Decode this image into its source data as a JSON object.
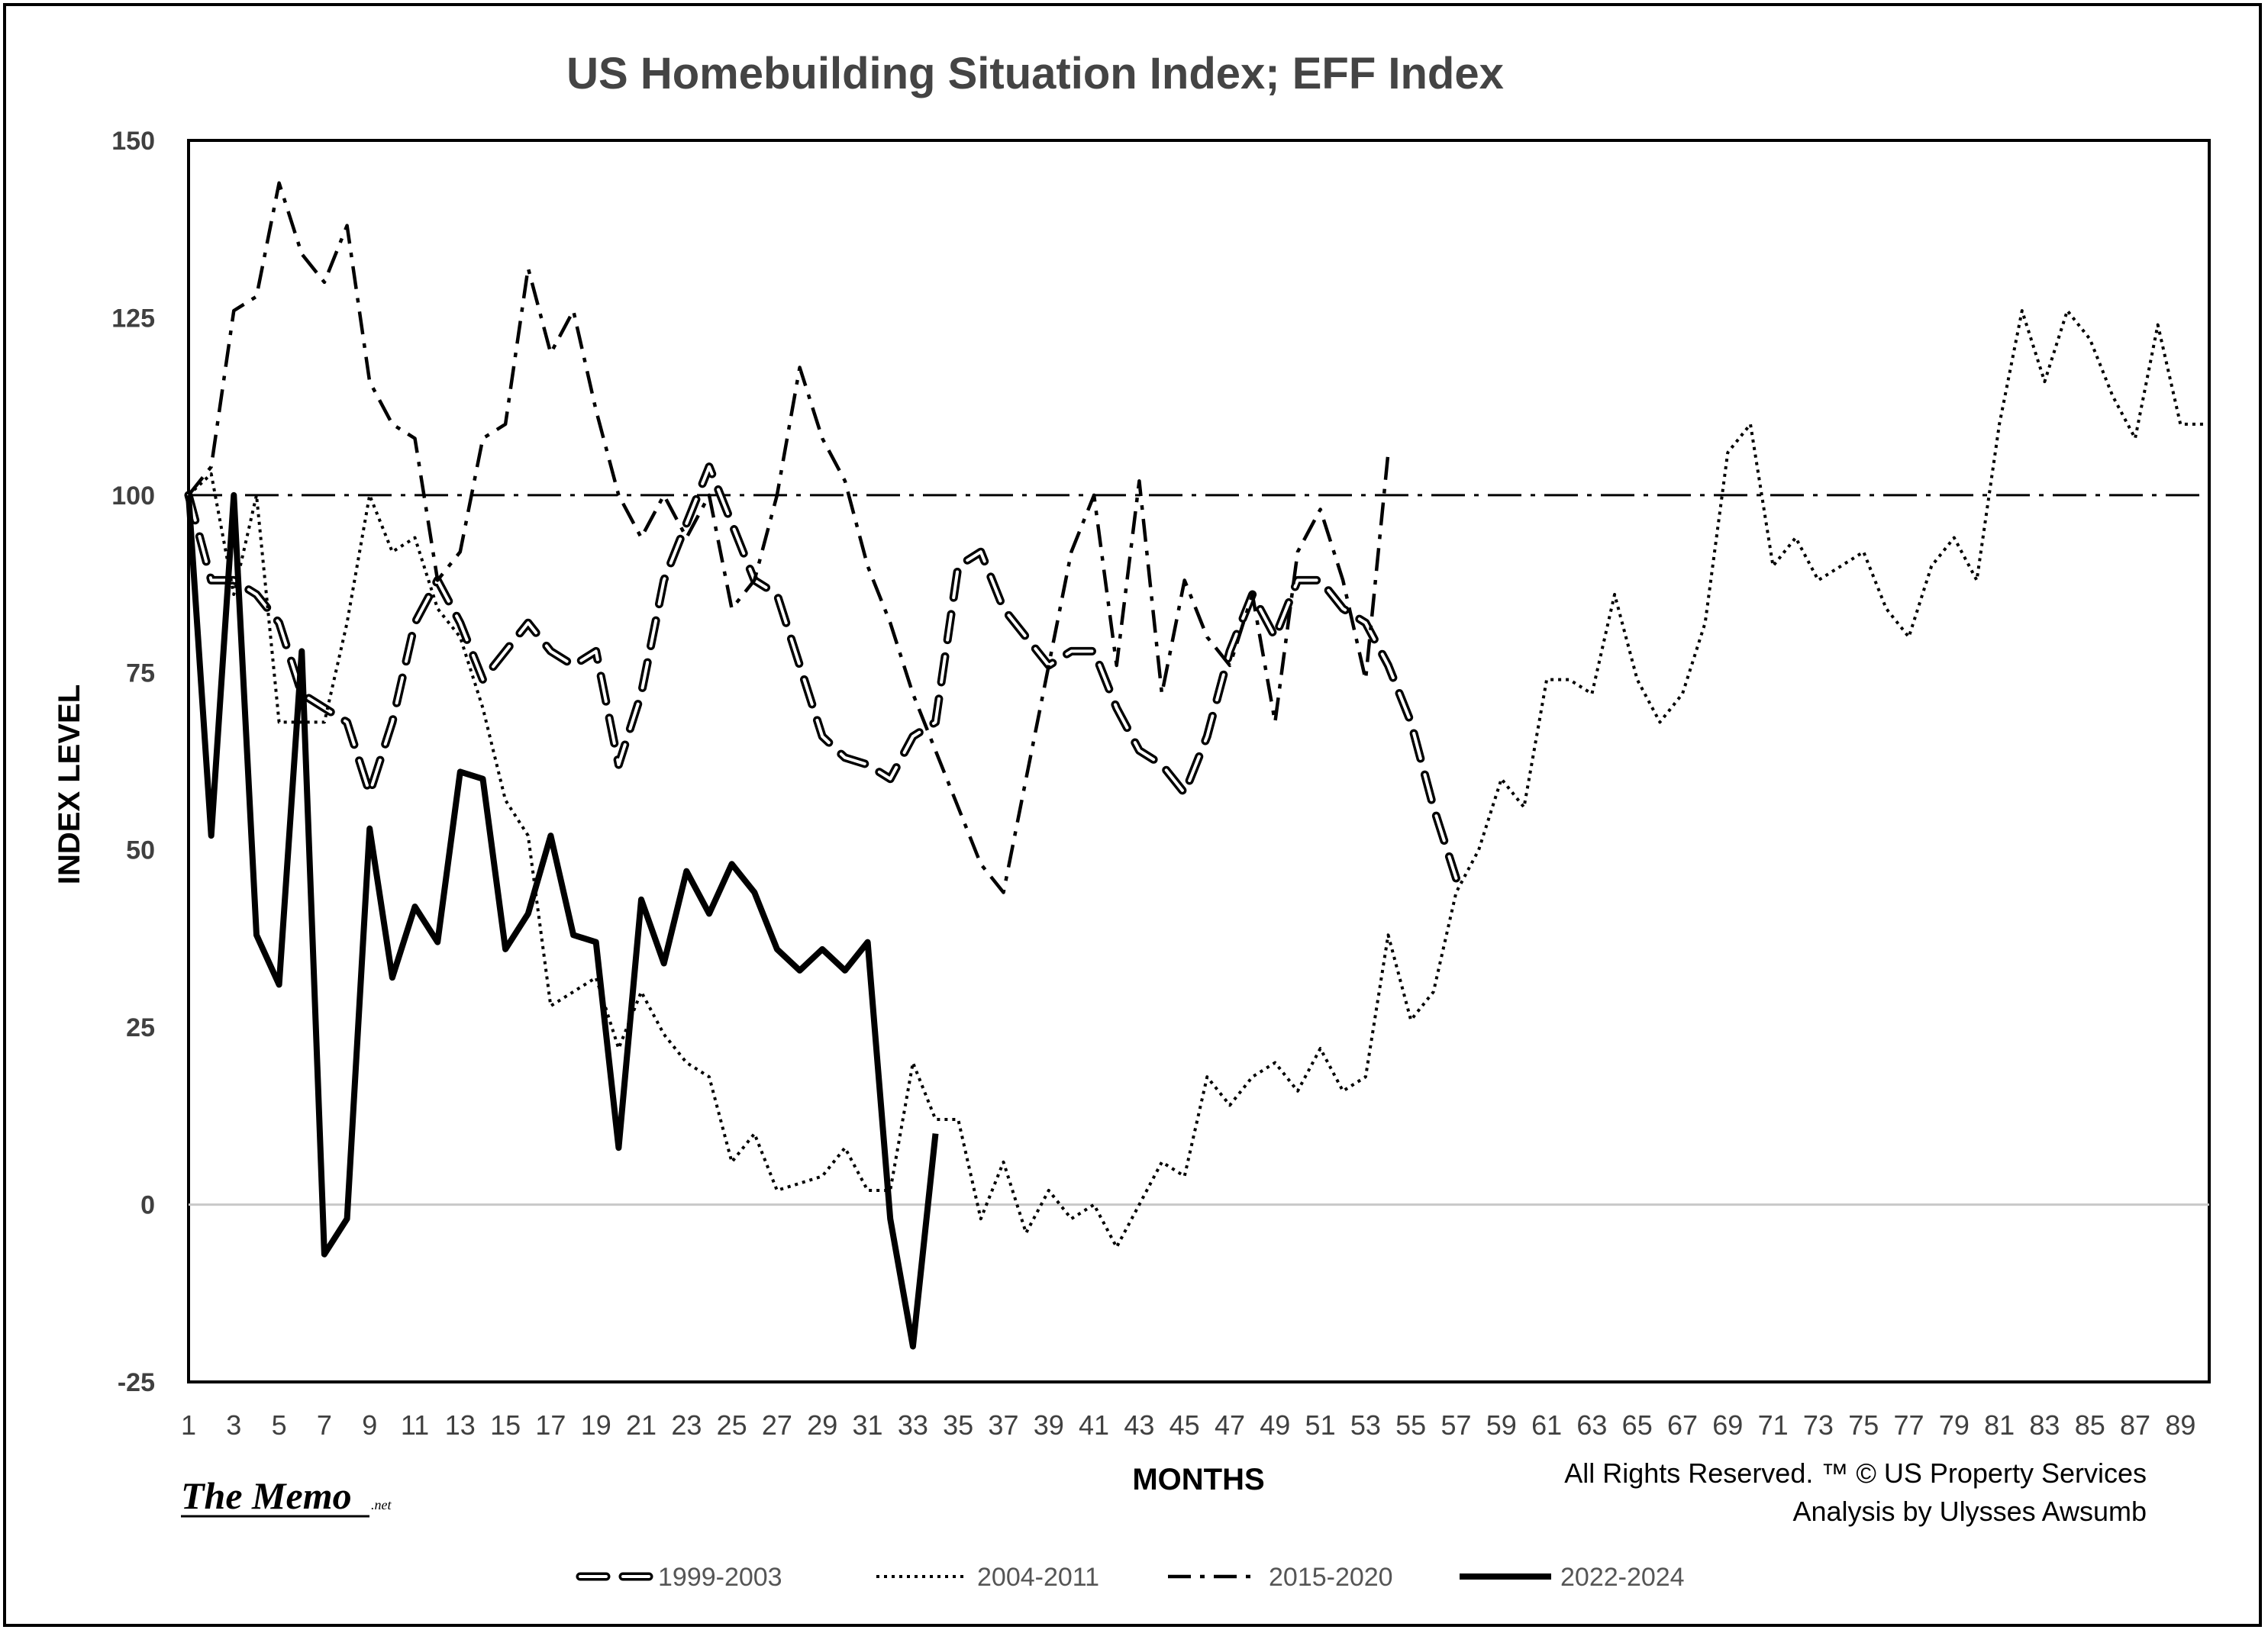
{
  "chart_data": {
    "type": "line",
    "title": "US Homebuilding Situation Index; EFF Index",
    "xlabel": "MONTHS",
    "ylabel": "INDEX LEVEL",
    "ylim": [
      -25,
      150
    ],
    "yticks": [
      -25,
      0,
      25,
      50,
      75,
      100,
      125,
      150
    ],
    "xlim": [
      1,
      90
    ],
    "xtick_labels": [
      "1",
      "3",
      "5",
      "7",
      "9",
      "11",
      "13",
      "15",
      "17",
      "19",
      "21",
      "23",
      "25",
      "27",
      "29",
      "31",
      "33",
      "35",
      "37",
      "39",
      "41",
      "43",
      "45",
      "47",
      "49",
      "51",
      "53",
      "55",
      "57",
      "59",
      "61",
      "63",
      "65",
      "67",
      "69",
      "71",
      "73",
      "75",
      "77",
      "79",
      "81",
      "83",
      "85",
      "87",
      "89"
    ],
    "grid": false,
    "legend_position": "bottom",
    "reference_line": {
      "y": 100,
      "style": "dash-dot"
    },
    "zero_line": {
      "y": 0
    },
    "series": [
      {
        "name": "1999-2003",
        "style": "double-dash",
        "x": [
          1,
          2,
          3,
          4,
          5,
          6,
          7,
          8,
          9,
          10,
          11,
          12,
          13,
          14,
          15,
          16,
          17,
          18,
          19,
          20,
          21,
          22,
          23,
          24,
          25,
          26,
          27,
          28,
          29,
          30,
          31,
          32,
          33,
          34,
          35,
          36,
          37,
          38,
          39,
          40,
          41,
          42,
          43,
          44,
          45,
          46,
          47,
          48,
          49,
          50,
          51,
          52,
          53,
          54,
          55,
          56,
          57
        ],
        "values": [
          100,
          88,
          88,
          86,
          82,
          72,
          70,
          68,
          58,
          68,
          82,
          88,
          82,
          74,
          78,
          82,
          78,
          76,
          78,
          62,
          72,
          88,
          96,
          104,
          96,
          88,
          86,
          76,
          66,
          63,
          62,
          60,
          66,
          68,
          90,
          92,
          84,
          80,
          76,
          78,
          78,
          70,
          64,
          62,
          58,
          66,
          78,
          86,
          80,
          88,
          88,
          84,
          82,
          76,
          68,
          56,
          46
        ]
      },
      {
        "name": "2004-2011",
        "style": "dotted",
        "x": [
          1,
          2,
          3,
          4,
          5,
          6,
          7,
          8,
          9,
          10,
          11,
          12,
          13,
          14,
          15,
          16,
          17,
          18,
          19,
          20,
          21,
          22,
          23,
          24,
          25,
          26,
          27,
          28,
          29,
          30,
          31,
          32,
          33,
          34,
          35,
          36,
          37,
          38,
          39,
          40,
          41,
          42,
          43,
          44,
          45,
          46,
          47,
          48,
          49,
          50,
          51,
          52,
          53,
          54,
          55,
          56,
          57,
          58,
          59,
          60,
          61,
          62,
          63,
          64,
          65,
          66,
          67,
          68,
          69,
          70,
          71,
          72,
          73,
          74,
          75,
          76,
          77,
          78,
          79,
          80,
          81,
          82,
          83,
          84,
          85,
          86,
          87,
          88,
          89,
          90
        ],
        "values": [
          100,
          103,
          86,
          100,
          68,
          68,
          68,
          82,
          100,
          92,
          94,
          84,
          80,
          70,
          57,
          52,
          28,
          30,
          32,
          22,
          30,
          24,
          20,
          18,
          6,
          10,
          2,
          3,
          4,
          8,
          2,
          2,
          20,
          12,
          12,
          -2,
          6,
          -4,
          2,
          -2,
          0,
          -6,
          0,
          6,
          4,
          18,
          14,
          18,
          20,
          16,
          22,
          16,
          18,
          38,
          26,
          30,
          44,
          50,
          60,
          56,
          74,
          74,
          72,
          86,
          74,
          68,
          72,
          82,
          106,
          110,
          90,
          94,
          88,
          90,
          92,
          84,
          80,
          90,
          94,
          88,
          110,
          126,
          116,
          126,
          122,
          114,
          108,
          124,
          110,
          110
        ]
      },
      {
        "name": "2015-2020",
        "style": "dash-dot",
        "x": [
          1,
          2,
          3,
          4,
          5,
          6,
          7,
          8,
          9,
          10,
          11,
          12,
          13,
          14,
          15,
          16,
          17,
          18,
          19,
          20,
          21,
          22,
          23,
          24,
          25,
          26,
          27,
          28,
          29,
          30,
          31,
          32,
          33,
          34,
          35,
          36,
          37,
          38,
          39,
          40,
          41,
          42,
          43,
          44,
          45,
          46,
          47,
          48,
          49,
          50,
          51,
          52,
          53,
          54
        ],
        "values": [
          100,
          104,
          126,
          128,
          144,
          134,
          130,
          138,
          116,
          110,
          108,
          88,
          92,
          108,
          110,
          132,
          120,
          126,
          112,
          100,
          94,
          100,
          94,
          100,
          84,
          88,
          100,
          118,
          108,
          102,
          90,
          82,
          72,
          64,
          56,
          48,
          44,
          60,
          76,
          92,
          100,
          76,
          102,
          72,
          88,
          80,
          76,
          86,
          68,
          92,
          98,
          88,
          74,
          106
        ]
      },
      {
        "name": "2022-2024",
        "style": "solid-bold",
        "x": [
          1,
          2,
          3,
          4,
          5,
          6,
          7,
          8,
          9,
          10,
          11,
          12,
          13,
          14,
          15,
          16,
          17,
          18,
          19,
          20,
          21,
          22,
          23,
          24,
          25,
          26,
          27,
          28,
          29,
          30,
          31,
          32,
          33,
          34
        ],
        "values": [
          100,
          52,
          100,
          38,
          31,
          78,
          -7,
          -2,
          53,
          32,
          42,
          37,
          61,
          60,
          36,
          41,
          52,
          38,
          37,
          8,
          43,
          34,
          47,
          41,
          48,
          44,
          36,
          33,
          36,
          33,
          37,
          -2,
          -20,
          10
        ]
      }
    ]
  },
  "credits": {
    "line1": "All Rights Reserved. ™ © US Property Services",
    "line2": "Analysis by Ulysses Awsumb"
  },
  "logo": {
    "name": "The Memo",
    "suffix": ".net"
  },
  "colors": {
    "axis": "#000000",
    "zero_line": "#c8c8c8",
    "series": "#000000"
  }
}
